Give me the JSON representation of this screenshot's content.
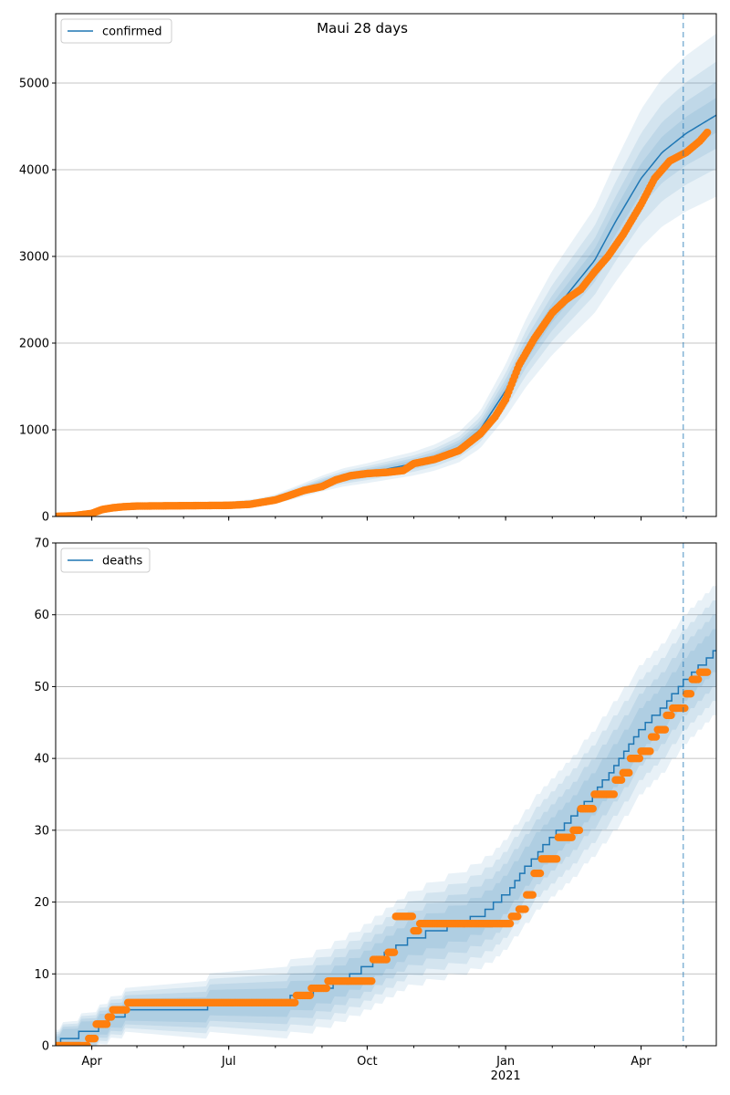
{
  "figure": {
    "title": "Maui 28 days"
  },
  "chart_data": [
    {
      "type": "line",
      "title": "Maui 28 days",
      "legend": {
        "label": "confirmed",
        "placement": "top-left"
      },
      "x_range": [
        "2020-03-08",
        "2021-05-21"
      ],
      "forecast_start": "2021-04-29",
      "ylim": [
        0,
        5800
      ],
      "yticks": [
        0,
        1000,
        2000,
        3000,
        4000,
        5000
      ],
      "xticks": [
        {
          "date": "2020-04-01",
          "label": "Apr",
          "sublabel": ""
        },
        {
          "date": "2020-07-01",
          "label": "Jul",
          "sublabel": ""
        },
        {
          "date": "2020-10-01",
          "label": "Oct",
          "sublabel": ""
        },
        {
          "date": "2021-01-01",
          "label": "Jan",
          "sublabel": "2021"
        },
        {
          "date": "2021-04-01",
          "label": "Apr",
          "sublabel": ""
        }
      ],
      "grid": "horizontal",
      "model": [
        [
          "2020-03-08",
          0
        ],
        [
          "2020-03-20",
          10
        ],
        [
          "2020-04-01",
          40
        ],
        [
          "2020-04-15",
          105
        ],
        [
          "2020-05-01",
          120
        ],
        [
          "2020-06-01",
          125
        ],
        [
          "2020-07-01",
          130
        ],
        [
          "2020-07-20",
          160
        ],
        [
          "2020-08-01",
          200
        ],
        [
          "2020-08-15",
          280
        ],
        [
          "2020-09-01",
          380
        ],
        [
          "2020-09-15",
          450
        ],
        [
          "2020-10-01",
          500
        ],
        [
          "2020-10-15",
          550
        ],
        [
          "2020-11-01",
          610
        ],
        [
          "2020-11-15",
          680
        ],
        [
          "2020-12-01",
          800
        ],
        [
          "2020-12-15",
          1000
        ],
        [
          "2021-01-01",
          1450
        ],
        [
          "2021-01-15",
          1900
        ],
        [
          "2021-02-01",
          2350
        ],
        [
          "2021-02-15",
          2650
        ],
        [
          "2021-03-01",
          2950
        ],
        [
          "2021-03-15",
          3400
        ],
        [
          "2021-04-01",
          3900
        ],
        [
          "2021-04-15",
          4200
        ],
        [
          "2021-05-01",
          4420
        ],
        [
          "2021-05-21",
          4630
        ]
      ],
      "band_widths": [
        0.04,
        0.08,
        0.13,
        0.2
      ],
      "observed": [
        [
          "2020-03-08",
          0
        ],
        [
          "2020-03-20",
          8
        ],
        [
          "2020-04-01",
          35
        ],
        [
          "2020-04-08",
          80
        ],
        [
          "2020-04-15",
          100
        ],
        [
          "2020-04-22",
          112
        ],
        [
          "2020-05-01",
          120
        ],
        [
          "2020-06-01",
          124
        ],
        [
          "2020-07-01",
          128
        ],
        [
          "2020-07-15",
          140
        ],
        [
          "2020-08-01",
          190
        ],
        [
          "2020-08-10",
          240
        ],
        [
          "2020-08-20",
          300
        ],
        [
          "2020-09-01",
          345
        ],
        [
          "2020-09-10",
          420
        ],
        [
          "2020-09-20",
          470
        ],
        [
          "2020-10-01",
          495
        ],
        [
          "2020-10-15",
          510
        ],
        [
          "2020-10-25",
          530
        ],
        [
          "2020-11-01",
          610
        ],
        [
          "2020-11-15",
          660
        ],
        [
          "2020-12-01",
          760
        ],
        [
          "2020-12-15",
          950
        ],
        [
          "2020-12-25",
          1150
        ],
        [
          "2021-01-01",
          1350
        ],
        [
          "2021-01-10",
          1750
        ],
        [
          "2021-01-20",
          2050
        ],
        [
          "2021-02-01",
          2350
        ],
        [
          "2021-02-10",
          2500
        ],
        [
          "2021-02-20",
          2620
        ],
        [
          "2021-03-01",
          2820
        ],
        [
          "2021-03-10",
          3000
        ],
        [
          "2021-03-20",
          3250
        ],
        [
          "2021-04-01",
          3600
        ],
        [
          "2021-04-10",
          3900
        ],
        [
          "2021-04-20",
          4100
        ],
        [
          "2021-05-01",
          4200
        ],
        [
          "2021-05-10",
          4330
        ],
        [
          "2021-05-15",
          4430
        ]
      ]
    },
    {
      "type": "line",
      "title": "",
      "legend": {
        "label": "deaths",
        "placement": "top-left"
      },
      "x_range": [
        "2020-03-08",
        "2021-05-21"
      ],
      "forecast_start": "2021-04-29",
      "ylim": [
        0,
        70
      ],
      "yticks": [
        0,
        10,
        20,
        30,
        40,
        50,
        60,
        70
      ],
      "xticks": [
        {
          "date": "2020-04-01",
          "label": "Apr",
          "sublabel": ""
        },
        {
          "date": "2020-07-01",
          "label": "Jul",
          "sublabel": ""
        },
        {
          "date": "2020-10-01",
          "label": "Oct",
          "sublabel": ""
        },
        {
          "date": "2021-01-01",
          "label": "Jan",
          "sublabel": "2021"
        },
        {
          "date": "2021-04-01",
          "label": "Apr",
          "sublabel": ""
        }
      ],
      "grid": "horizontal",
      "model": [
        [
          "2020-03-08",
          0
        ],
        [
          "2020-03-14",
          1
        ],
        [
          "2020-04-01",
          2
        ],
        [
          "2020-04-15",
          4
        ],
        [
          "2020-05-01",
          5
        ],
        [
          "2020-06-01",
          5
        ],
        [
          "2020-07-01",
          6
        ],
        [
          "2020-08-01",
          6
        ],
        [
          "2020-08-20",
          7
        ],
        [
          "2020-09-01",
          8
        ],
        [
          "2020-09-15",
          9
        ],
        [
          "2020-10-01",
          11
        ],
        [
          "2020-10-15",
          13
        ],
        [
          "2020-11-01",
          15
        ],
        [
          "2020-11-15",
          16
        ],
        [
          "2020-12-01",
          17
        ],
        [
          "2020-12-15",
          18
        ],
        [
          "2021-01-01",
          21
        ],
        [
          "2021-01-15",
          25
        ],
        [
          "2021-02-01",
          29
        ],
        [
          "2021-02-15",
          32
        ],
        [
          "2021-03-01",
          35
        ],
        [
          "2021-03-15",
          39
        ],
        [
          "2021-04-01",
          44
        ],
        [
          "2021-04-15",
          47
        ],
        [
          "2021-05-01",
          51
        ],
        [
          "2021-05-21",
          55
        ]
      ],
      "band_widths": [
        2,
        4,
        6,
        8
      ],
      "observed": [
        [
          "2020-03-08",
          0
        ],
        [
          "2020-03-28",
          0
        ],
        [
          "2020-03-30",
          1
        ],
        [
          "2020-04-04",
          3
        ],
        [
          "2020-04-12",
          4
        ],
        [
          "2020-04-15",
          5
        ],
        [
          "2020-04-25",
          6
        ],
        [
          "2020-08-01",
          6
        ],
        [
          "2020-08-15",
          7
        ],
        [
          "2020-08-25",
          8
        ],
        [
          "2020-09-05",
          9
        ],
        [
          "2020-10-01",
          9
        ],
        [
          "2020-10-05",
          12
        ],
        [
          "2020-10-15",
          13
        ],
        [
          "2020-10-20",
          18
        ],
        [
          "2020-11-01",
          16
        ],
        [
          "2020-11-05",
          17
        ],
        [
          "2020-12-31",
          17
        ],
        [
          "2021-01-05",
          18
        ],
        [
          "2021-01-10",
          19
        ],
        [
          "2021-01-15",
          21
        ],
        [
          "2021-01-20",
          24
        ],
        [
          "2021-01-25",
          26
        ],
        [
          "2021-02-05",
          29
        ],
        [
          "2021-02-15",
          30
        ],
        [
          "2021-02-20",
          33
        ],
        [
          "2021-03-01",
          35
        ],
        [
          "2021-03-10",
          35
        ],
        [
          "2021-03-15",
          37
        ],
        [
          "2021-03-20",
          38
        ],
        [
          "2021-03-25",
          40
        ],
        [
          "2021-04-01",
          41
        ],
        [
          "2021-04-08",
          43
        ],
        [
          "2021-04-12",
          44
        ],
        [
          "2021-04-18",
          46
        ],
        [
          "2021-04-22",
          47
        ],
        [
          "2021-04-25",
          47
        ],
        [
          "2021-05-01",
          49
        ],
        [
          "2021-05-05",
          51
        ],
        [
          "2021-05-10",
          52
        ],
        [
          "2021-05-15",
          52
        ]
      ]
    }
  ]
}
